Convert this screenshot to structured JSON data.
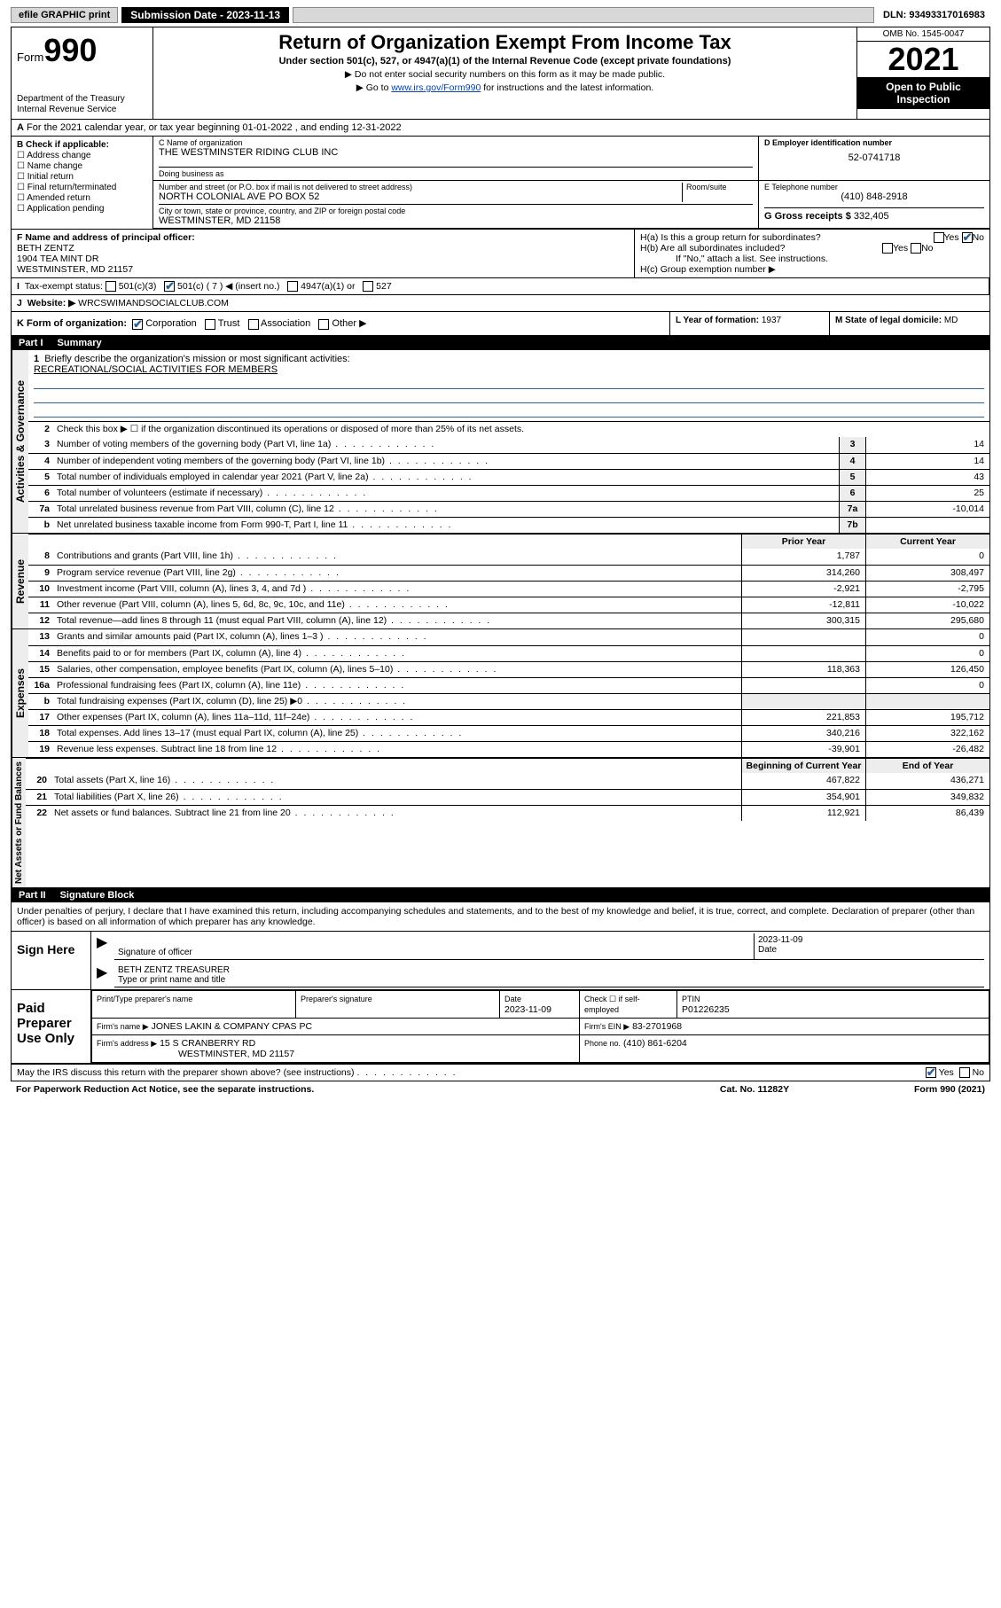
{
  "topbar": {
    "efile": "efile GRAPHIC print",
    "submission_label": "Submission Date - 2023-11-13",
    "dln": "DLN: 93493317016983"
  },
  "header": {
    "form_word": "Form",
    "form_num": "990",
    "dept": "Department of the Treasury",
    "irs": "Internal Revenue Service",
    "title": "Return of Organization Exempt From Income Tax",
    "subtitle": "Under section 501(c), 527, or 4947(a)(1) of the Internal Revenue Code (except private foundations)",
    "line1": "▶ Do not enter social security numbers on this form as it may be made public.",
    "line2a": "▶ Go to ",
    "line2_link": "www.irs.gov/Form990",
    "line2b": " for instructions and the latest information.",
    "omb": "OMB No. 1545-0047",
    "year": "2021",
    "open": "Open to Public Inspection"
  },
  "rowA": "For the 2021 calendar year, or tax year beginning 01-01-2022   , and ending 12-31-2022",
  "B": {
    "label": "B Check if applicable:",
    "items": [
      "Address change",
      "Name change",
      "Initial return",
      "Final return/terminated",
      "Amended return",
      "Application pending"
    ]
  },
  "C": {
    "name_label": "C Name of organization",
    "name": "THE WESTMINSTER RIDING CLUB INC",
    "dba_label": "Doing business as",
    "addr_label": "Number and street (or P.O. box if mail is not delivered to street address)",
    "room_label": "Room/suite",
    "addr": "NORTH COLONIAL AVE PO BOX 52",
    "city_label": "City or town, state or province, country, and ZIP or foreign postal code",
    "city": "WESTMINSTER, MD  21158"
  },
  "D": {
    "label": "D Employer identification number",
    "val": "52-0741718"
  },
  "E": {
    "label": "E Telephone number",
    "val": "(410) 848-2918"
  },
  "G": {
    "label": "G Gross receipts $",
    "val": "332,405"
  },
  "F": {
    "label": "F  Name and address of principal officer:",
    "name": "BETH ZENTZ",
    "addr1": "1904 TEA MINT DR",
    "addr2": "WESTMINSTER, MD  21157"
  },
  "H": {
    "a": "H(a)  Is this a group return for subordinates?",
    "b": "H(b)  Are all subordinates included?",
    "b_note": "If \"No,\" attach a list. See instructions.",
    "c": "H(c)  Group exemption number ▶",
    "yes": "Yes",
    "no": "No"
  },
  "I": {
    "label": "Tax-exempt status:",
    "opts": [
      "501(c)(3)",
      "501(c) ( 7 ) ◀ (insert no.)",
      "4947(a)(1) or",
      "527"
    ]
  },
  "J": {
    "label": "Website: ▶",
    "val": "WRCSWIMANDSOCIALCLUB.COM"
  },
  "K": {
    "label": "K Form of organization:",
    "opts": [
      "Corporation",
      "Trust",
      "Association",
      "Other ▶"
    ]
  },
  "L": {
    "label": "L Year of formation:",
    "val": "1937"
  },
  "M": {
    "label": "M State of legal domicile:",
    "val": "MD"
  },
  "partI": {
    "num": "Part I",
    "title": "Summary"
  },
  "summary": {
    "line1_label": "Briefly describe the organization's mission or most significant activities:",
    "line1_val": "RECREATIONAL/SOCIAL ACTIVITIES FOR MEMBERS",
    "line2": "Check this box ▶ ☐  if the organization discontinued its operations or disposed of more than 25% of its net assets.",
    "rows_gov": [
      {
        "n": "3",
        "d": "Number of voting members of the governing body (Part VI, line 1a)",
        "box": "3",
        "v": "14"
      },
      {
        "n": "4",
        "d": "Number of independent voting members of the governing body (Part VI, line 1b)",
        "box": "4",
        "v": "14"
      },
      {
        "n": "5",
        "d": "Total number of individuals employed in calendar year 2021 (Part V, line 2a)",
        "box": "5",
        "v": "43"
      },
      {
        "n": "6",
        "d": "Total number of volunteers (estimate if necessary)",
        "box": "6",
        "v": "25"
      },
      {
        "n": "7a",
        "d": "Total unrelated business revenue from Part VIII, column (C), line 12",
        "box": "7a",
        "v": "-10,014"
      },
      {
        "n": "b",
        "d": "Net unrelated business taxable income from Form 990-T, Part I, line 11",
        "box": "7b",
        "v": ""
      }
    ],
    "col_prior": "Prior Year",
    "col_current": "Current Year",
    "rows_rev": [
      {
        "n": "8",
        "d": "Contributions and grants (Part VIII, line 1h)",
        "p": "1,787",
        "c": "0"
      },
      {
        "n": "9",
        "d": "Program service revenue (Part VIII, line 2g)",
        "p": "314,260",
        "c": "308,497"
      },
      {
        "n": "10",
        "d": "Investment income (Part VIII, column (A), lines 3, 4, and 7d )",
        "p": "-2,921",
        "c": "-2,795"
      },
      {
        "n": "11",
        "d": "Other revenue (Part VIII, column (A), lines 5, 6d, 8c, 9c, 10c, and 11e)",
        "p": "-12,811",
        "c": "-10,022"
      },
      {
        "n": "12",
        "d": "Total revenue—add lines 8 through 11 (must equal Part VIII, column (A), line 12)",
        "p": "300,315",
        "c": "295,680"
      }
    ],
    "rows_exp": [
      {
        "n": "13",
        "d": "Grants and similar amounts paid (Part IX, column (A), lines 1–3 )",
        "p": "",
        "c": "0"
      },
      {
        "n": "14",
        "d": "Benefits paid to or for members (Part IX, column (A), line 4)",
        "p": "",
        "c": "0"
      },
      {
        "n": "15",
        "d": "Salaries, other compensation, employee benefits (Part IX, column (A), lines 5–10)",
        "p": "118,363",
        "c": "126,450"
      },
      {
        "n": "16a",
        "d": "Professional fundraising fees (Part IX, column (A), line 11e)",
        "p": "",
        "c": "0"
      },
      {
        "n": "b",
        "d": "Total fundraising expenses (Part IX, column (D), line 25) ▶0",
        "p": "shade",
        "c": "shade"
      },
      {
        "n": "17",
        "d": "Other expenses (Part IX, column (A), lines 11a–11d, 11f–24e)",
        "p": "221,853",
        "c": "195,712"
      },
      {
        "n": "18",
        "d": "Total expenses. Add lines 13–17 (must equal Part IX, column (A), line 25)",
        "p": "340,216",
        "c": "322,162"
      },
      {
        "n": "19",
        "d": "Revenue less expenses. Subtract line 18 from line 12",
        "p": "-39,901",
        "c": "-26,482"
      }
    ],
    "col_begin": "Beginning of Current Year",
    "col_end": "End of Year",
    "rows_net": [
      {
        "n": "20",
        "d": "Total assets (Part X, line 16)",
        "p": "467,822",
        "c": "436,271"
      },
      {
        "n": "21",
        "d": "Total liabilities (Part X, line 26)",
        "p": "354,901",
        "c": "349,832"
      },
      {
        "n": "22",
        "d": "Net assets or fund balances. Subtract line 21 from line 20",
        "p": "112,921",
        "c": "86,439"
      }
    ],
    "side_gov": "Activities & Governance",
    "side_rev": "Revenue",
    "side_exp": "Expenses",
    "side_net": "Net Assets or Fund Balances"
  },
  "partII": {
    "num": "Part II",
    "title": "Signature Block"
  },
  "sig": {
    "intro": "Under penalties of perjury, I declare that I have examined this return, including accompanying schedules and statements, and to the best of my knowledge and belief, it is true, correct, and complete. Declaration of preparer (other than officer) is based on all information of which preparer has any knowledge.",
    "sign_here": "Sign Here",
    "sig_of_officer": "Signature of officer",
    "date": "Date",
    "date_val": "2023-11-09",
    "name_title": "BETH ZENTZ  TREASURER",
    "name_label": "Type or print name and title",
    "paid": "Paid Preparer Use Only",
    "pt_name_lab": "Print/Type preparer's name",
    "pt_sig_lab": "Preparer's signature",
    "pt_date_lab": "Date",
    "pt_date": "2023-11-09",
    "pt_check": "Check ☐ if self-employed",
    "ptin_lab": "PTIN",
    "ptin": "P01226235",
    "firm_name_lab": "Firm's name    ▶",
    "firm_name": "JONES LAKIN & COMPANY CPAS PC",
    "firm_ein_lab": "Firm's EIN ▶",
    "firm_ein": "83-2701968",
    "firm_addr_lab": "Firm's address ▶",
    "firm_addr1": "15 S CRANBERRY RD",
    "firm_addr2": "WESTMINSTER, MD  21157",
    "phone_lab": "Phone no.",
    "phone": "(410) 861-6204"
  },
  "footer": {
    "discuss": "May the IRS discuss this return with the preparer shown above? (see instructions)",
    "yes": "Yes",
    "no": "No",
    "paperwork": "For Paperwork Reduction Act Notice, see the separate instructions.",
    "cat": "Cat. No. 11282Y",
    "form": "Form 990 (2021)"
  }
}
